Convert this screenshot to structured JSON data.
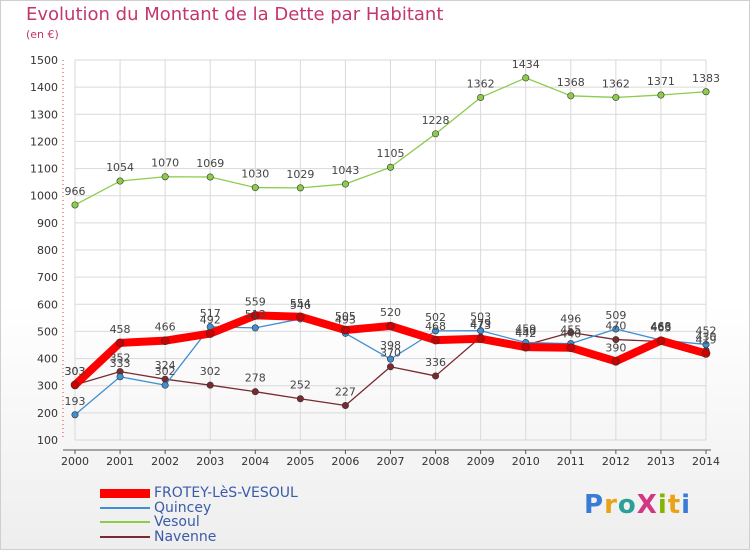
{
  "title": "Evolution du Montant de la Dette par Habitant",
  "unit_label": "(en €)",
  "logo_text": "ProXiti",
  "logo_colors": [
    "#3a7bd5",
    "#e8a317",
    "#2aa198",
    "#d33682",
    "#86b300",
    "#e8a317",
    "#3a7bd5"
  ],
  "chart_data": {
    "type": "line",
    "x": [
      "2000",
      "2001",
      "2002",
      "2003",
      "2004",
      "2005",
      "2006",
      "2007",
      "2008",
      "2009",
      "2010",
      "2011",
      "2012",
      "2013",
      "2014"
    ],
    "ylim": [
      100,
      1500
    ],
    "yticks": [
      100,
      200,
      300,
      400,
      500,
      600,
      700,
      800,
      900,
      1000,
      1100,
      1200,
      1300,
      1400,
      1500
    ],
    "grid": true,
    "legend_position": "bottom-left",
    "series": [
      {
        "name": "Vesoul",
        "color": "#8ccc4a",
        "values": [
          966,
          1054,
          1070,
          1069,
          1030,
          1029,
          1043,
          1105,
          1228,
          1362,
          1434,
          1368,
          1362,
          1371,
          1383
        ]
      },
      {
        "name": "Navenne",
        "color": "#7a2a30",
        "values": [
          303,
          352,
          324,
          302,
          278,
          252,
          227,
          370,
          336,
          479,
          450,
          496,
          470,
          463,
          430
        ]
      },
      {
        "name": "Quincey",
        "color": "#3f8fd2",
        "values": [
          193,
          333,
          302,
          517,
          513,
          546,
          493,
          398,
          502,
          503,
          459,
          455,
          509,
          468,
          452
        ]
      },
      {
        "name": "FROTEY-LèS-VESOUL",
        "color": "#ff0000",
        "values": [
          303,
          458,
          466,
          492,
          559,
          554,
          505,
          520,
          468,
          473,
          442,
          440,
          390,
          466,
          419
        ]
      }
    ],
    "legend_order": [
      "FROTEY-LèS-VESOUL",
      "Quincey",
      "Vesoul",
      "Navenne"
    ]
  }
}
